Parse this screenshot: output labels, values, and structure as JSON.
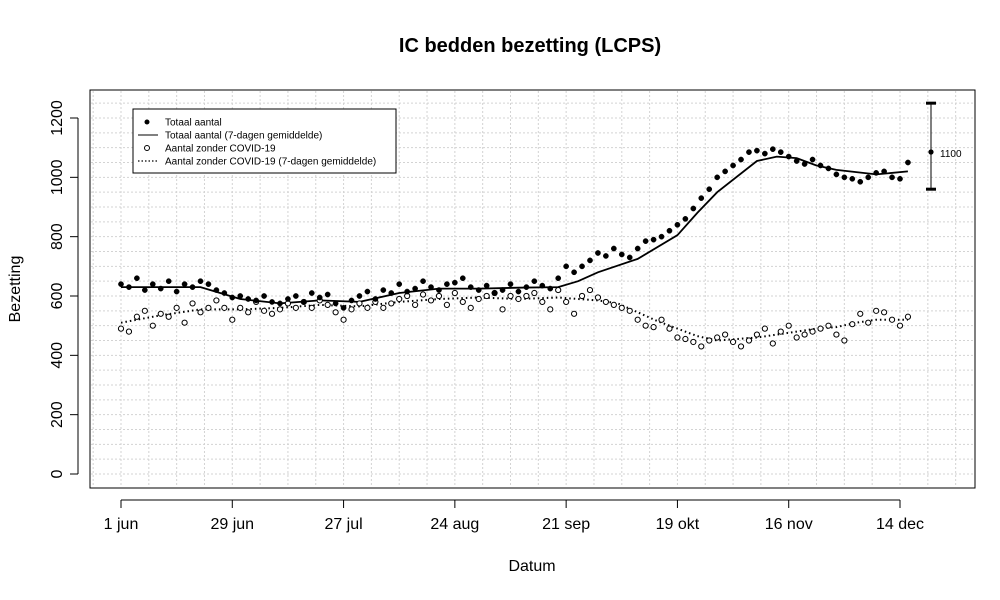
{
  "chart_data": {
    "type": "scatter",
    "title": "IC bedden bezetting (LCPS)",
    "xlabel": "Datum",
    "ylabel": "Bezetting",
    "ylim": [
      0,
      1200
    ],
    "yticks": [
      0,
      200,
      400,
      600,
      800,
      1000,
      1200
    ],
    "xticks": [
      {
        "day": 0,
        "label": "1 jun"
      },
      {
        "day": 28,
        "label": "29 jun"
      },
      {
        "day": 56,
        "label": "27 jul"
      },
      {
        "day": 84,
        "label": "24 aug"
      },
      {
        "day": 112,
        "label": "21 sep"
      },
      {
        "day": 140,
        "label": "19 okt"
      },
      {
        "day": 168,
        "label": "16 nov"
      },
      {
        "day": 196,
        "label": "14 dec"
      }
    ],
    "x_start_date": "2020-06-01",
    "grid": true,
    "legend_position": "top-left",
    "legend": [
      {
        "label": "Totaal aantal",
        "style": "filled-point"
      },
      {
        "label": "Totaal aantal (7-dagen gemiddelde)",
        "style": "solid-line"
      },
      {
        "label": "Aantal zonder COVID-19",
        "style": "open-point"
      },
      {
        "label": "Aantal zonder COVID-19 (7-dagen gemiddelde)",
        "style": "dotted-line"
      }
    ],
    "series": [
      {
        "name": "Totaal aantal",
        "x_days": [
          0,
          2,
          4,
          6,
          8,
          10,
          12,
          14,
          16,
          18,
          20,
          22,
          24,
          26,
          28,
          30,
          32,
          34,
          36,
          38,
          40,
          42,
          44,
          46,
          48,
          50,
          52,
          54,
          56,
          58,
          60,
          62,
          64,
          66,
          68,
          70,
          72,
          74,
          76,
          78,
          80,
          82,
          84,
          86,
          88,
          90,
          92,
          94,
          96,
          98,
          100,
          102,
          104,
          106,
          108,
          110,
          112,
          114,
          116,
          118,
          120,
          122,
          124,
          126,
          128,
          130,
          132,
          134,
          136,
          138,
          140,
          142,
          144,
          146,
          148,
          150,
          152,
          154,
          156,
          158,
          160,
          162,
          164,
          166,
          168,
          170,
          172,
          174,
          176,
          178,
          180,
          182,
          184,
          186,
          188,
          190,
          192,
          194,
          196,
          198
        ],
        "y": [
          640,
          630,
          660,
          620,
          640,
          625,
          650,
          615,
          640,
          630,
          650,
          640,
          620,
          610,
          595,
          600,
          590,
          585,
          600,
          580,
          575,
          590,
          600,
          580,
          610,
          595,
          605,
          575,
          560,
          585,
          600,
          615,
          590,
          620,
          610,
          640,
          615,
          625,
          650,
          630,
          620,
          640,
          645,
          660,
          630,
          620,
          635,
          610,
          620,
          640,
          615,
          630,
          650,
          635,
          625,
          660,
          700,
          680,
          700,
          720,
          745,
          735,
          760,
          740,
          730,
          760,
          785,
          790,
          800,
          820,
          840,
          860,
          895,
          930,
          960,
          1000,
          1020,
          1040,
          1060,
          1085,
          1090,
          1080,
          1095,
          1085,
          1070,
          1055,
          1045,
          1060,
          1040,
          1030,
          1010,
          1000,
          995,
          985,
          1000,
          1015,
          1020,
          1000,
          995,
          1050
        ]
      },
      {
        "name": "Totaal aantal (7-dagen gemiddelde)",
        "x_days": [
          0,
          10,
          20,
          30,
          40,
          50,
          60,
          70,
          80,
          90,
          100,
          110,
          115,
          120,
          130,
          140,
          145,
          150,
          160,
          165,
          170,
          175,
          180,
          190,
          198
        ],
        "y": [
          630,
          630,
          630,
          590,
          575,
          585,
          580,
          610,
          625,
          625,
          628,
          630,
          650,
          680,
          725,
          805,
          880,
          950,
          1055,
          1070,
          1065,
          1040,
          1025,
          1010,
          1020
        ]
      },
      {
        "name": "Aantal zonder COVID-19",
        "x_days": [
          0,
          2,
          4,
          6,
          8,
          10,
          12,
          14,
          16,
          18,
          20,
          22,
          24,
          26,
          28,
          30,
          32,
          34,
          36,
          38,
          40,
          42,
          44,
          46,
          48,
          50,
          52,
          54,
          56,
          58,
          60,
          62,
          64,
          66,
          68,
          70,
          72,
          74,
          76,
          78,
          80,
          82,
          84,
          86,
          88,
          90,
          92,
          94,
          96,
          98,
          100,
          102,
          104,
          106,
          108,
          110,
          112,
          114,
          116,
          118,
          120,
          122,
          124,
          126,
          128,
          130,
          132,
          134,
          136,
          138,
          140,
          142,
          144,
          146,
          148,
          150,
          152,
          154,
          156,
          158,
          160,
          162,
          164,
          166,
          168,
          170,
          172,
          174,
          176,
          178,
          180,
          182,
          184,
          186,
          188,
          190,
          192,
          194,
          196,
          198
        ],
        "y": [
          490,
          480,
          530,
          550,
          500,
          540,
          530,
          560,
          510,
          575,
          545,
          560,
          585,
          560,
          520,
          560,
          545,
          580,
          550,
          540,
          555,
          575,
          560,
          580,
          560,
          585,
          570,
          545,
          520,
          555,
          575,
          560,
          580,
          560,
          575,
          590,
          600,
          570,
          605,
          585,
          600,
          570,
          610,
          580,
          560,
          590,
          600,
          610,
          555,
          600,
          590,
          600,
          610,
          580,
          555,
          620,
          580,
          540,
          600,
          620,
          595,
          580,
          570,
          560,
          550,
          520,
          500,
          495,
          520,
          490,
          460,
          455,
          445,
          430,
          450,
          460,
          470,
          445,
          430,
          450,
          470,
          490,
          440,
          480,
          500,
          460,
          470,
          480,
          490,
          500,
          470,
          450,
          505,
          540,
          510,
          550,
          545,
          520,
          500,
          530
        ]
      },
      {
        "name": "Aantal zonder COVID-19 (7-dagen gemiddelde)",
        "x_days": [
          0,
          10,
          20,
          30,
          40,
          50,
          60,
          70,
          80,
          90,
          100,
          110,
          115,
          120,
          125,
          130,
          135,
          140,
          145,
          150,
          160,
          165,
          170,
          175,
          180,
          185,
          190,
          198
        ],
        "y": [
          510,
          535,
          555,
          555,
          560,
          570,
          565,
          580,
          590,
          595,
          590,
          595,
          590,
          585,
          575,
          545,
          515,
          490,
          465,
          450,
          460,
          470,
          480,
          490,
          495,
          510,
          520,
          520
        ]
      }
    ],
    "annotation": {
      "label": "1100",
      "value": 1100,
      "lower": 960,
      "upper": 1250
    }
  }
}
